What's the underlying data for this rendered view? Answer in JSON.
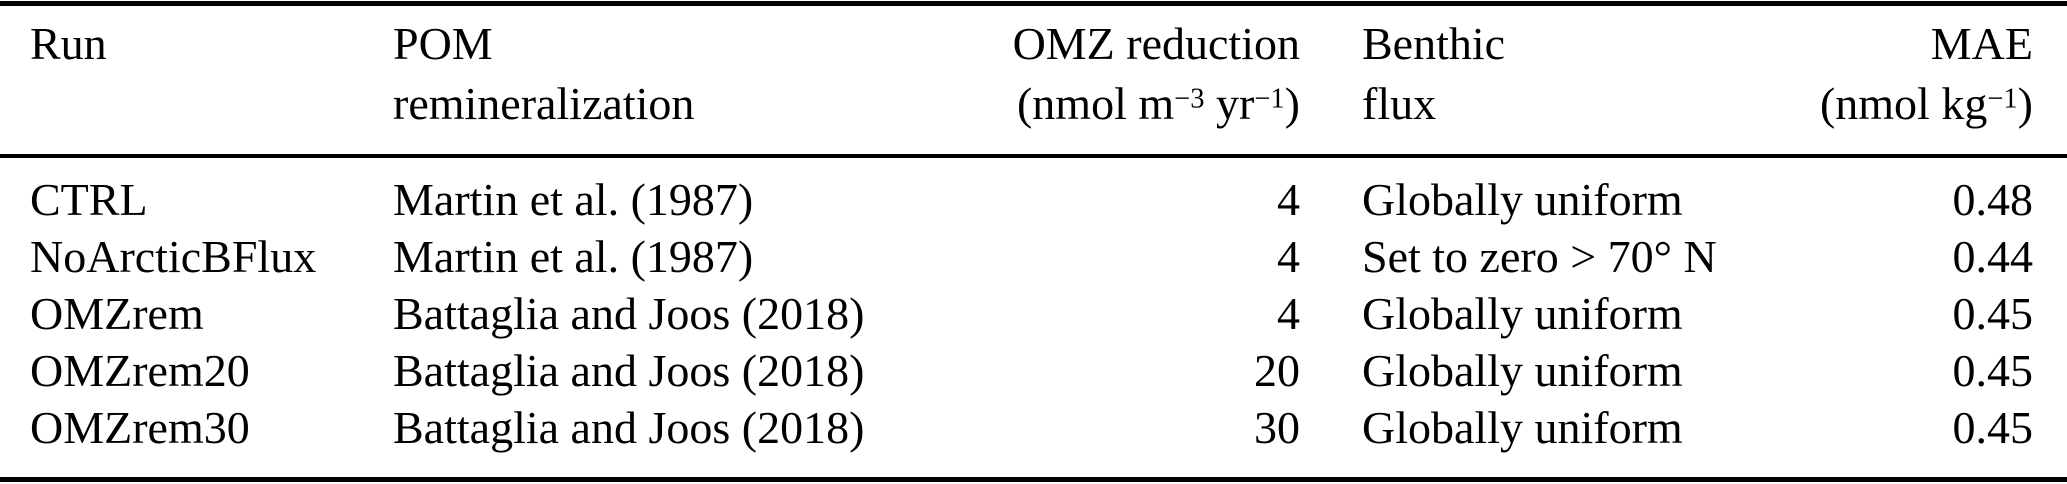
{
  "colors": {
    "background": "#ffffff",
    "text": "#000000",
    "rule": "#000000"
  },
  "header": {
    "run": {
      "line1": "Run"
    },
    "pom": {
      "line1": "POM",
      "line2": "remineralization"
    },
    "omz": {
      "line1": "OMZ reduction",
      "unit_prefix": "(nmol m",
      "unit_sup1": "−3",
      "unit_mid": " yr",
      "unit_sup2": "−1",
      "unit_suffix": ")"
    },
    "benthic": {
      "line1": "Benthic",
      "line2": "flux"
    },
    "mae": {
      "line1": "MAE",
      "unit_prefix": "(nmol kg",
      "unit_sup1": "−1",
      "unit_suffix": ")"
    }
  },
  "rows": [
    {
      "run": "CTRL",
      "pom": "Martin et al. (1987)",
      "omz": "4",
      "benthic": "Globally uniform",
      "mae": "0.48"
    },
    {
      "run": "NoArcticBFlux",
      "pom": "Martin et al. (1987)",
      "omz": "4",
      "benthic": "Set to zero > 70° N",
      "mae": "0.44"
    },
    {
      "run": "OMZrem",
      "pom": "Battaglia and Joos (2018)",
      "omz": "4",
      "benthic": "Globally uniform",
      "mae": "0.45"
    },
    {
      "run": "OMZrem20",
      "pom": "Battaglia and Joos (2018)",
      "omz": "20",
      "benthic": "Globally uniform",
      "mae": "0.45"
    },
    {
      "run": "OMZrem30",
      "pom": "Battaglia and Joos (2018)",
      "omz": "30",
      "benthic": "Globally uniform",
      "mae": "0.45"
    }
  ]
}
